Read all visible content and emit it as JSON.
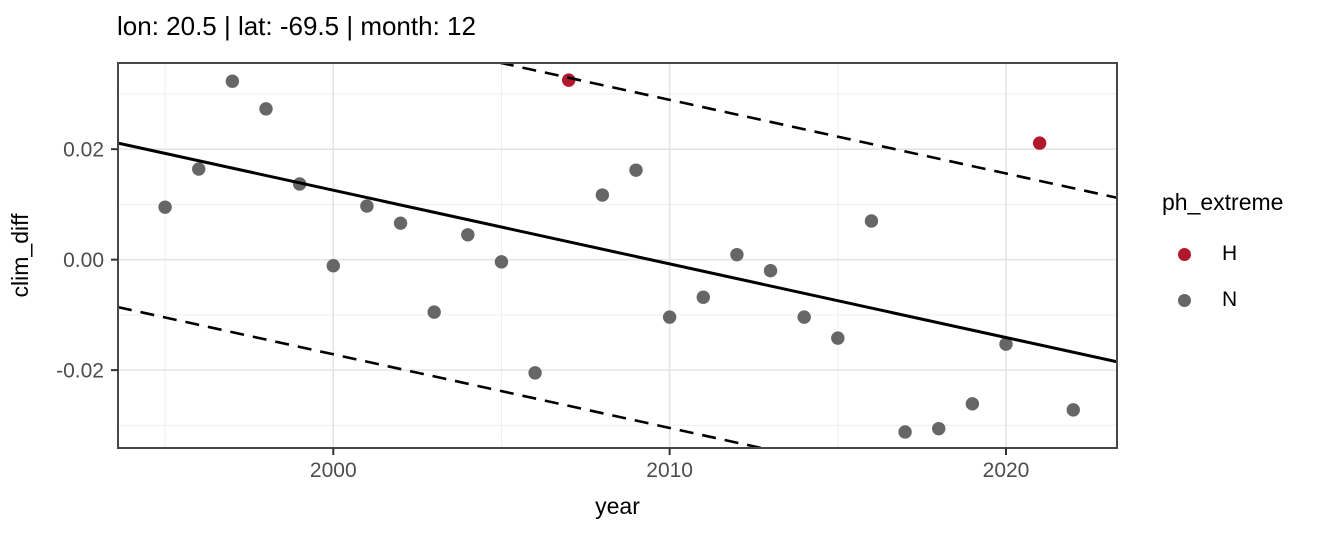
{
  "chart_data": {
    "type": "scatter",
    "title": "lon: 20.5 | lat: -69.5 | month: 12",
    "xlabel": "year",
    "ylabel": "clim_diff",
    "xlim": [
      1993.6,
      2023.3
    ],
    "ylim": [
      -0.0341,
      0.0356
    ],
    "grid": true,
    "legend_position": "right",
    "x_major_ticks": [
      2000,
      2010,
      2020
    ],
    "x_major_labels": [
      "2000",
      "2010",
      "2020"
    ],
    "x_minor_ticks": [
      1995,
      2005,
      2015
    ],
    "y_major_ticks": [
      0.02,
      0.0,
      -0.02
    ],
    "y_major_labels": [
      "0.02",
      "0.00",
      "-0.02"
    ],
    "y_minor_ticks": [
      0.03,
      0.01,
      -0.01,
      -0.03
    ],
    "legend": {
      "title": "ph_extreme",
      "entries": [
        {
          "label": "H",
          "color": "#B2182B"
        },
        {
          "label": "N",
          "color": "#666666"
        }
      ]
    },
    "series": [
      {
        "name": "H",
        "color": "#B2182B",
        "points": [
          {
            "x": 2007,
            "y": 0.0325
          },
          {
            "x": 2021,
            "y": 0.0211
          }
        ]
      },
      {
        "name": "N",
        "color": "#666666",
        "points": [
          {
            "x": 1995,
            "y": 0.0095
          },
          {
            "x": 1996,
            "y": 0.0164
          },
          {
            "x": 1997,
            "y": 0.0323
          },
          {
            "x": 1998,
            "y": 0.0273
          },
          {
            "x": 1999,
            "y": 0.0137
          },
          {
            "x": 2000,
            "y": -0.0011
          },
          {
            "x": 2001,
            "y": 0.0097
          },
          {
            "x": 2002,
            "y": 0.0066
          },
          {
            "x": 2003,
            "y": -0.0095
          },
          {
            "x": 2004,
            "y": 0.0045
          },
          {
            "x": 2005,
            "y": -0.0004
          },
          {
            "x": 2006,
            "y": -0.0205
          },
          {
            "x": 2008,
            "y": 0.0117
          },
          {
            "x": 2009,
            "y": 0.0162
          },
          {
            "x": 2010,
            "y": -0.0104
          },
          {
            "x": 2011,
            "y": -0.0068
          },
          {
            "x": 2012,
            "y": 0.0009
          },
          {
            "x": 2013,
            "y": -0.002
          },
          {
            "x": 2014,
            "y": -0.0104
          },
          {
            "x": 2015,
            "y": -0.0142
          },
          {
            "x": 2016,
            "y": 0.007
          },
          {
            "x": 2017,
            "y": -0.0312
          },
          {
            "x": 2018,
            "y": -0.0306
          },
          {
            "x": 2019,
            "y": -0.0261
          },
          {
            "x": 2020,
            "y": -0.0153
          },
          {
            "x": 2022,
            "y": -0.0272
          }
        ]
      }
    ],
    "fit_line": {
      "style": "solid",
      "x1": 1993.6,
      "y1": 0.0211,
      "x2": 2023.3,
      "y2": -0.0185
    },
    "interval_lines": {
      "style": "dashed",
      "offset": 0.0297
    },
    "colors": {
      "grid_major": "#e4e4e4",
      "grid_minor": "#efefef",
      "panel_border": "#474747",
      "tick_mark": "#333333",
      "tick_text": "#4d4d4d",
      "line": "#000000"
    }
  }
}
